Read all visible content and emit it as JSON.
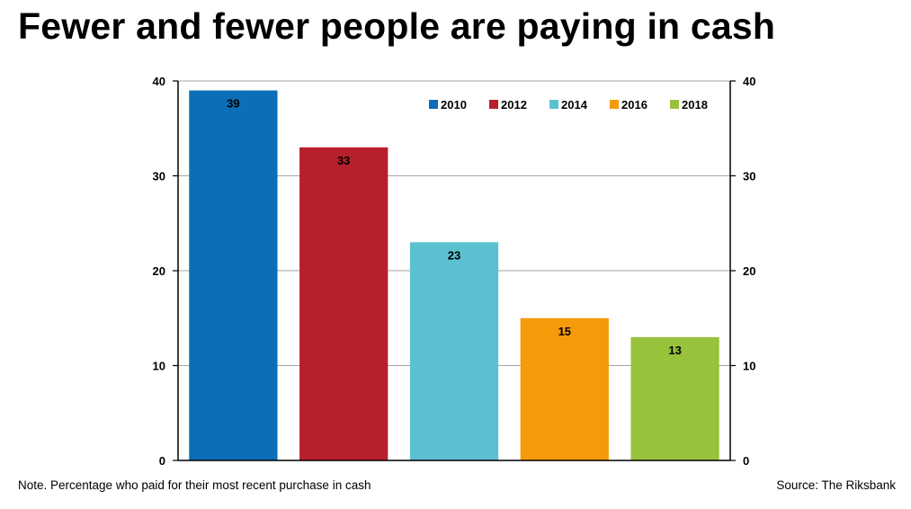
{
  "title": "Fewer and fewer people are paying in cash",
  "note": "Note. Percentage who paid for their most recent purchase in cash",
  "source": "Source: The Riksbank",
  "chart_data": {
    "type": "bar",
    "categories": [
      "2010",
      "2012",
      "2014",
      "2016",
      "2018"
    ],
    "values": [
      39,
      33,
      23,
      15,
      13
    ],
    "data_labels": [
      "39",
      "33",
      "23",
      "15",
      "13"
    ],
    "colors": [
      "#0a6fb7",
      "#b71f2b",
      "#5bc0cf",
      "#f59a0a",
      "#98c13c"
    ],
    "ylim": [
      0,
      40
    ],
    "yticks": [
      0,
      10,
      20,
      30,
      40
    ],
    "secondary_y_axis": true,
    "legend": [
      "2010",
      "2012",
      "2014",
      "2016",
      "2018"
    ],
    "legend_position": "top-right",
    "grid": "horizontal",
    "title": "",
    "xlabel": "",
    "ylabel": ""
  }
}
